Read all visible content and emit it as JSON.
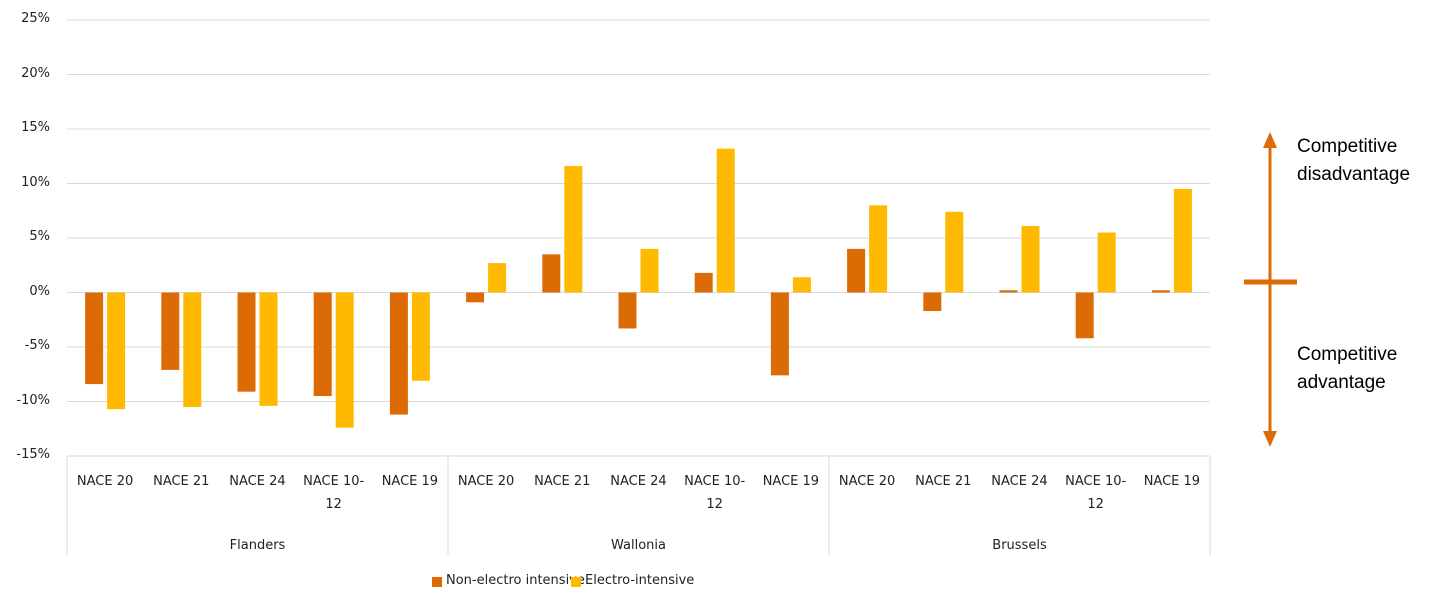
{
  "chart_data": {
    "type": "bar",
    "categories": [
      "NACE 20",
      "NACE 21",
      "NACE 24",
      "NACE 10-12",
      "NACE 19",
      "NACE 20",
      "NACE 21",
      "NACE 24",
      "NACE 10-12",
      "NACE 19",
      "NACE 20",
      "NACE 21",
      "NACE 24",
      "NACE 10-12",
      "NACE 19"
    ],
    "groups": [
      "Flanders",
      "Wallonia",
      "Brussels"
    ],
    "series": [
      {
        "name": "Non-electro intensive",
        "color": "#dc6b06",
        "values": [
          -8.4,
          -7.1,
          -9.1,
          -9.5,
          -11.2,
          -0.9,
          3.5,
          -3.3,
          1.8,
          -7.6,
          4.0,
          -1.7,
          0.2,
          -4.2,
          0.2
        ]
      },
      {
        "name": "Electro-intensive",
        "color": "#ffb900",
        "values": [
          -10.7,
          -10.5,
          -10.4,
          -12.4,
          -8.1,
          2.7,
          11.6,
          4.0,
          13.2,
          1.4,
          8.0,
          7.4,
          6.1,
          5.5,
          9.5
        ]
      }
    ],
    "ylim": [
      -15,
      25
    ],
    "yticks": [
      {
        "value": -15,
        "label": "-15%"
      },
      {
        "value": -10,
        "label": "-10%"
      },
      {
        "value": -5,
        "label": "-5%"
      },
      {
        "value": 0,
        "label": "0%"
      },
      {
        "value": 5,
        "label": "5%"
      },
      {
        "value": 10,
        "label": "10%"
      },
      {
        "value": 15,
        "label": "15%"
      },
      {
        "value": 20,
        "label": "20%"
      },
      {
        "value": 25,
        "label": "25%"
      }
    ],
    "grid": true,
    "annotations": [
      "Competitive disadvantage",
      "Competitive advantage"
    ]
  }
}
